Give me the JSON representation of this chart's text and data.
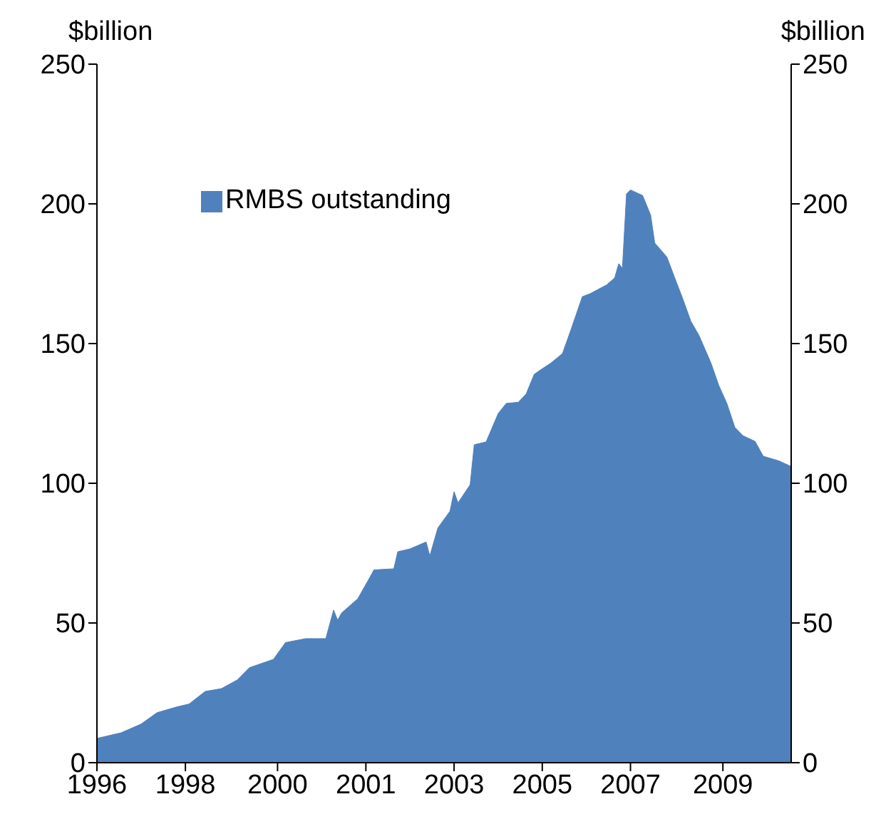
{
  "chart_data": {
    "type": "area",
    "ylabel": "$billion",
    "y2label": "$billion",
    "x": [
      "1996-04",
      "1996-10",
      "1997-03",
      "1997-07",
      "1997-12",
      "1998-03",
      "1998-07",
      "1998-11",
      "1999-03",
      "1999-06",
      "1999-12",
      "2000-03",
      "2000-08",
      "2001-01",
      "2001-03",
      "2001-04",
      "2001-05",
      "2001-09",
      "2001-12",
      "2002-01",
      "2002-06",
      "2002-07",
      "2002-10",
      "2003-02",
      "2003-03",
      "2003-05",
      "2003-08",
      "2003-09",
      "2003-10",
      "2004-01",
      "2004-02",
      "2004-05",
      "2004-08",
      "2004-10",
      "2005-01",
      "2005-03",
      "2005-05",
      "2005-07",
      "2005-09",
      "2005-12",
      "2006-02",
      "2006-05",
      "2006-07",
      "2006-11",
      "2007-01",
      "2007-02",
      "2007-03",
      "2007-04",
      "2007-05",
      "2007-08",
      "2007-10",
      "2007-11",
      "2008-02",
      "2008-04",
      "2008-06",
      "2008-08",
      "2008-10",
      "2009-01",
      "2009-03",
      "2009-05",
      "2009-07",
      "2009-09",
      "2009-12",
      "2010-02",
      "2010-06",
      "2010-09"
    ],
    "series": [
      {
        "name": "RMBS outstanding",
        "color": "#4f81bd",
        "values": [
          8.7,
          10.7,
          13.8,
          17.9,
          20,
          21,
          25.5,
          26.5,
          29.6,
          34,
          37,
          43,
          44.4,
          44.4,
          54.6,
          51,
          53.6,
          58.7,
          66.3,
          69,
          69.4,
          75.5,
          76.5,
          79,
          74,
          84,
          90,
          97,
          93,
          99.5,
          113.8,
          114.8,
          125,
          128.6,
          129,
          132,
          139,
          141,
          142.9,
          146.4,
          154.6,
          166.8,
          167.9,
          171,
          173.5,
          178.6,
          177,
          203.6,
          205,
          203,
          196,
          186,
          181,
          173.5,
          166,
          158,
          153,
          143,
          135,
          128.6,
          120,
          117,
          115,
          109.7,
          108,
          106
        ]
      }
    ],
    "xlim": [
      "1996-04",
      "2010-09"
    ],
    "xticks": [
      {
        "value": "1996-04",
        "label": "1996"
      },
      {
        "value": "1998-02",
        "label": "1998"
      },
      {
        "value": "2000-01",
        "label": "2000"
      },
      {
        "value": "2001-11",
        "label": "2001"
      },
      {
        "value": "2003-09",
        "label": "2003"
      },
      {
        "value": "2005-07",
        "label": "2005"
      },
      {
        "value": "2007-05",
        "label": "2007"
      },
      {
        "value": "2009-04",
        "label": "2009"
      }
    ],
    "ylim": [
      0,
      250
    ],
    "yticks": [
      0,
      50,
      100,
      150,
      200,
      250
    ],
    "y2lim": [
      0,
      250
    ],
    "y2ticks": [
      0,
      50,
      100,
      150,
      200,
      250
    ],
    "legend": "top left"
  }
}
